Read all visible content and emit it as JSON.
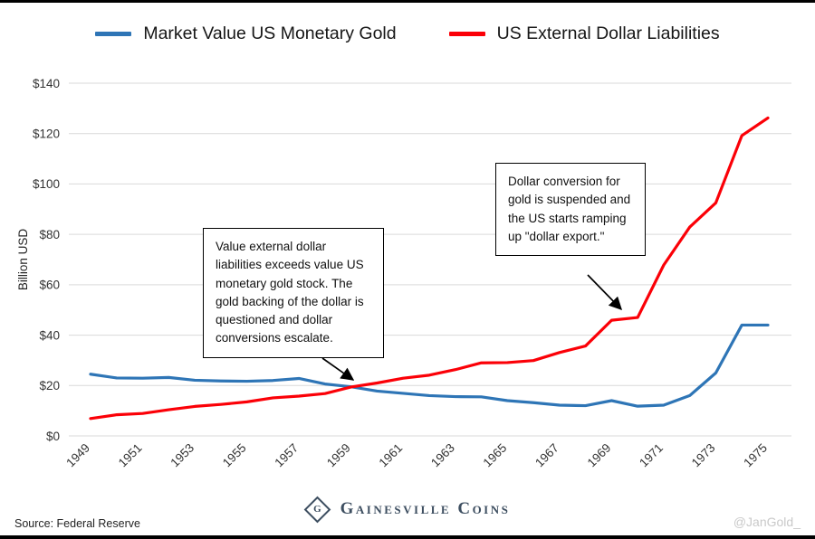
{
  "chart_data": {
    "type": "line",
    "title": "",
    "ylabel": "Billion USD",
    "ylim": [
      0,
      140
    ],
    "ytick_values": [
      0,
      20,
      40,
      60,
      80,
      100,
      120,
      140
    ],
    "ytick_prefix": "$",
    "xtick_step": 2,
    "grid": true,
    "legend_position": "top",
    "x": [
      1949,
      1950,
      1951,
      1952,
      1953,
      1954,
      1955,
      1956,
      1957,
      1958,
      1959,
      1960,
      1961,
      1962,
      1963,
      1964,
      1965,
      1966,
      1967,
      1968,
      1969,
      1970,
      1971,
      1972,
      1973,
      1974,
      1975
    ],
    "series": [
      {
        "name": "Market Value US Monetary Gold",
        "color": "#2e75b6",
        "values": [
          24.5,
          23.0,
          22.9,
          23.2,
          22.1,
          21.8,
          21.7,
          22.0,
          22.8,
          20.6,
          19.5,
          17.8,
          16.9,
          16.0,
          15.6,
          15.5,
          14.0,
          13.2,
          12.2,
          12.0,
          14.0,
          11.8,
          12.2,
          16.0,
          25.0,
          44.0,
          44.0
        ]
      },
      {
        "name": "US External Dollar Liabilities",
        "color": "#fb0007",
        "values": [
          6.9,
          8.4,
          8.9,
          10.4,
          11.7,
          12.5,
          13.5,
          15.1,
          15.8,
          16.8,
          19.4,
          21.0,
          22.9,
          24.1,
          26.3,
          29.0,
          29.1,
          29.9,
          33.1,
          35.7,
          45.9,
          47.0,
          67.8,
          82.9,
          92.5,
          119.2,
          126.2
        ]
      }
    ]
  },
  "annotations": [
    {
      "text": "Value external dollar liabilities exceeds value US monetary gold stock. The gold backing of the dollar is questioned and dollar conversions escalate."
    },
    {
      "text": "Dollar conversion for gold is suspended and the US starts ramping up \"dollar export.\""
    }
  ],
  "footer": {
    "source": "Source: Federal Reserve",
    "logo_monogram": "G",
    "logo_text": "Gainesville Coins",
    "handle": "@JanGold_"
  }
}
